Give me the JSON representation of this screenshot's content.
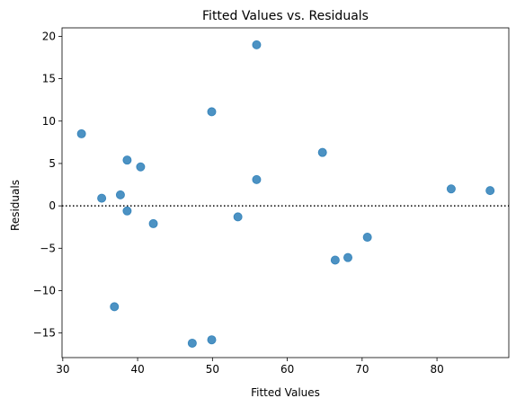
{
  "chart_data": {
    "type": "scatter",
    "title": "Fitted Values vs. Residuals",
    "xlabel": "Fitted Values",
    "ylabel": "Residuals",
    "xlim": [
      29.9,
      89.6
    ],
    "ylim": [
      -17.9,
      21.0
    ],
    "xticks": [
      30,
      40,
      50,
      60,
      70,
      80
    ],
    "xtick_labels": [
      "30",
      "40",
      "50",
      "60",
      "70",
      "80"
    ],
    "yticks": [
      -15,
      -10,
      -5,
      0,
      5,
      10,
      15,
      20
    ],
    "ytick_labels": [
      "−15",
      "−10",
      "−5",
      "0",
      "5",
      "10",
      "15",
      "20"
    ],
    "reference_line": {
      "y": 0,
      "style": "dotted",
      "color": "#000000"
    },
    "grid": false,
    "point_color": "#1f77b4",
    "points": [
      {
        "x": 32.5,
        "y": 8.5
      },
      {
        "x": 35.2,
        "y": 0.9
      },
      {
        "x": 36.9,
        "y": -11.9
      },
      {
        "x": 37.7,
        "y": 1.3
      },
      {
        "x": 38.6,
        "y": 5.4
      },
      {
        "x": 38.6,
        "y": -0.6
      },
      {
        "x": 40.4,
        "y": 4.6
      },
      {
        "x": 42.1,
        "y": -2.1
      },
      {
        "x": 47.3,
        "y": -16.2
      },
      {
        "x": 49.9,
        "y": 11.1
      },
      {
        "x": 49.9,
        "y": -15.8
      },
      {
        "x": 53.4,
        "y": -1.3
      },
      {
        "x": 55.9,
        "y": 19.0
      },
      {
        "x": 55.9,
        "y": 3.1
      },
      {
        "x": 64.7,
        "y": 6.3
      },
      {
        "x": 66.4,
        "y": -6.4
      },
      {
        "x": 68.1,
        "y": -6.1
      },
      {
        "x": 70.7,
        "y": -3.7
      },
      {
        "x": 81.9,
        "y": 2.0
      },
      {
        "x": 87.1,
        "y": 1.8
      }
    ]
  }
}
